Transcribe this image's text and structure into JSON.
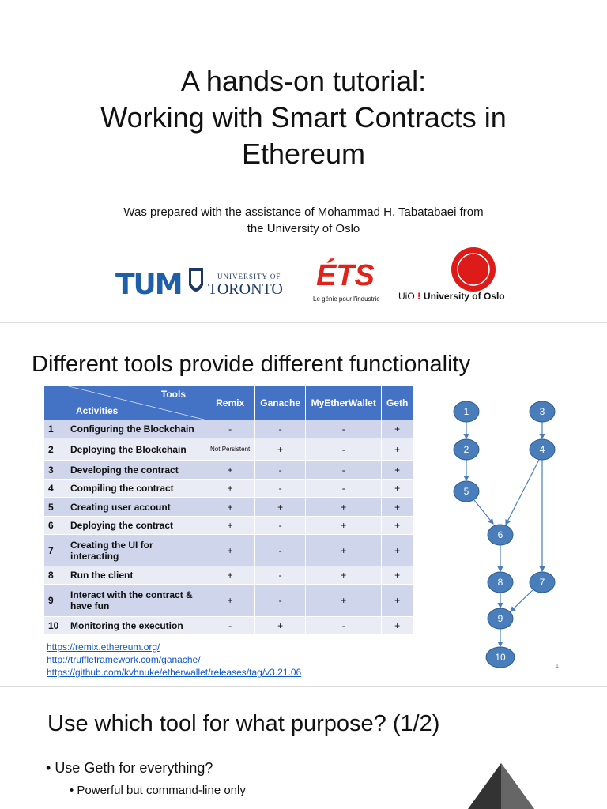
{
  "slide1": {
    "title": [
      "A hands-on tutorial:",
      "Working with Smart Contracts in",
      "Ethereum"
    ],
    "subtitle": [
      "Was prepared with the assistance of Mohammad H. Tabatabaei from",
      "the University of Oslo"
    ],
    "logos": [
      "TUM",
      "UNIVERSITY OF",
      "TORONTO",
      "ÉTS",
      "Le génie pour l'industrie",
      "UiO",
      "University of Oslo"
    ]
  },
  "slide2": {
    "title": "Different tools provide different functionality",
    "table": {
      "header": [
        "Tools",
        "Activities",
        "Remix",
        "Ganache",
        "MyEtherWallet",
        "Geth"
      ],
      "rows": [
        [
          "1",
          "Configuring the Blockchain",
          "-",
          "-",
          "-",
          "+"
        ],
        [
          "2",
          "Deploying the Blockchain",
          "Not Persistent",
          "+",
          "-",
          "+"
        ],
        [
          "3",
          "Developing the contract",
          "+",
          "-",
          "-",
          "+"
        ],
        [
          "4",
          "Compiling the contract",
          "+",
          "-",
          "-",
          "+"
        ],
        [
          "5",
          "Creating user account",
          "+",
          "+",
          "+",
          "+"
        ],
        [
          "6",
          "Deploying the contract",
          "+",
          "-",
          "+",
          "+"
        ],
        [
          "7",
          "Creating the UI for interacting",
          "+",
          "-",
          "+",
          "+"
        ],
        [
          "8",
          "Run the client",
          "+",
          "-",
          "+",
          "+"
        ],
        [
          "9",
          "Interact with the contract & have fun",
          "+",
          "-",
          "+",
          "+"
        ],
        [
          "10",
          "Monitoring the execution",
          "-",
          "+",
          "-",
          "+"
        ]
      ]
    },
    "links": [
      "https://remix.ethereum.org/",
      "http://truffleframework.com/ganache/",
      "https://github.com/kvhnuke/etherwallet/releases/tag/v3.21.06"
    ],
    "nodes": [
      "1",
      "2",
      "3",
      "4",
      "5",
      "6",
      "7",
      "8",
      "9",
      "10"
    ],
    "page_number": "1"
  },
  "slide3": {
    "title": "Use which tool for what purpose? (1/2)",
    "bullets": [
      "Use Geth for everything?",
      "Powerful but command-line only"
    ]
  }
}
